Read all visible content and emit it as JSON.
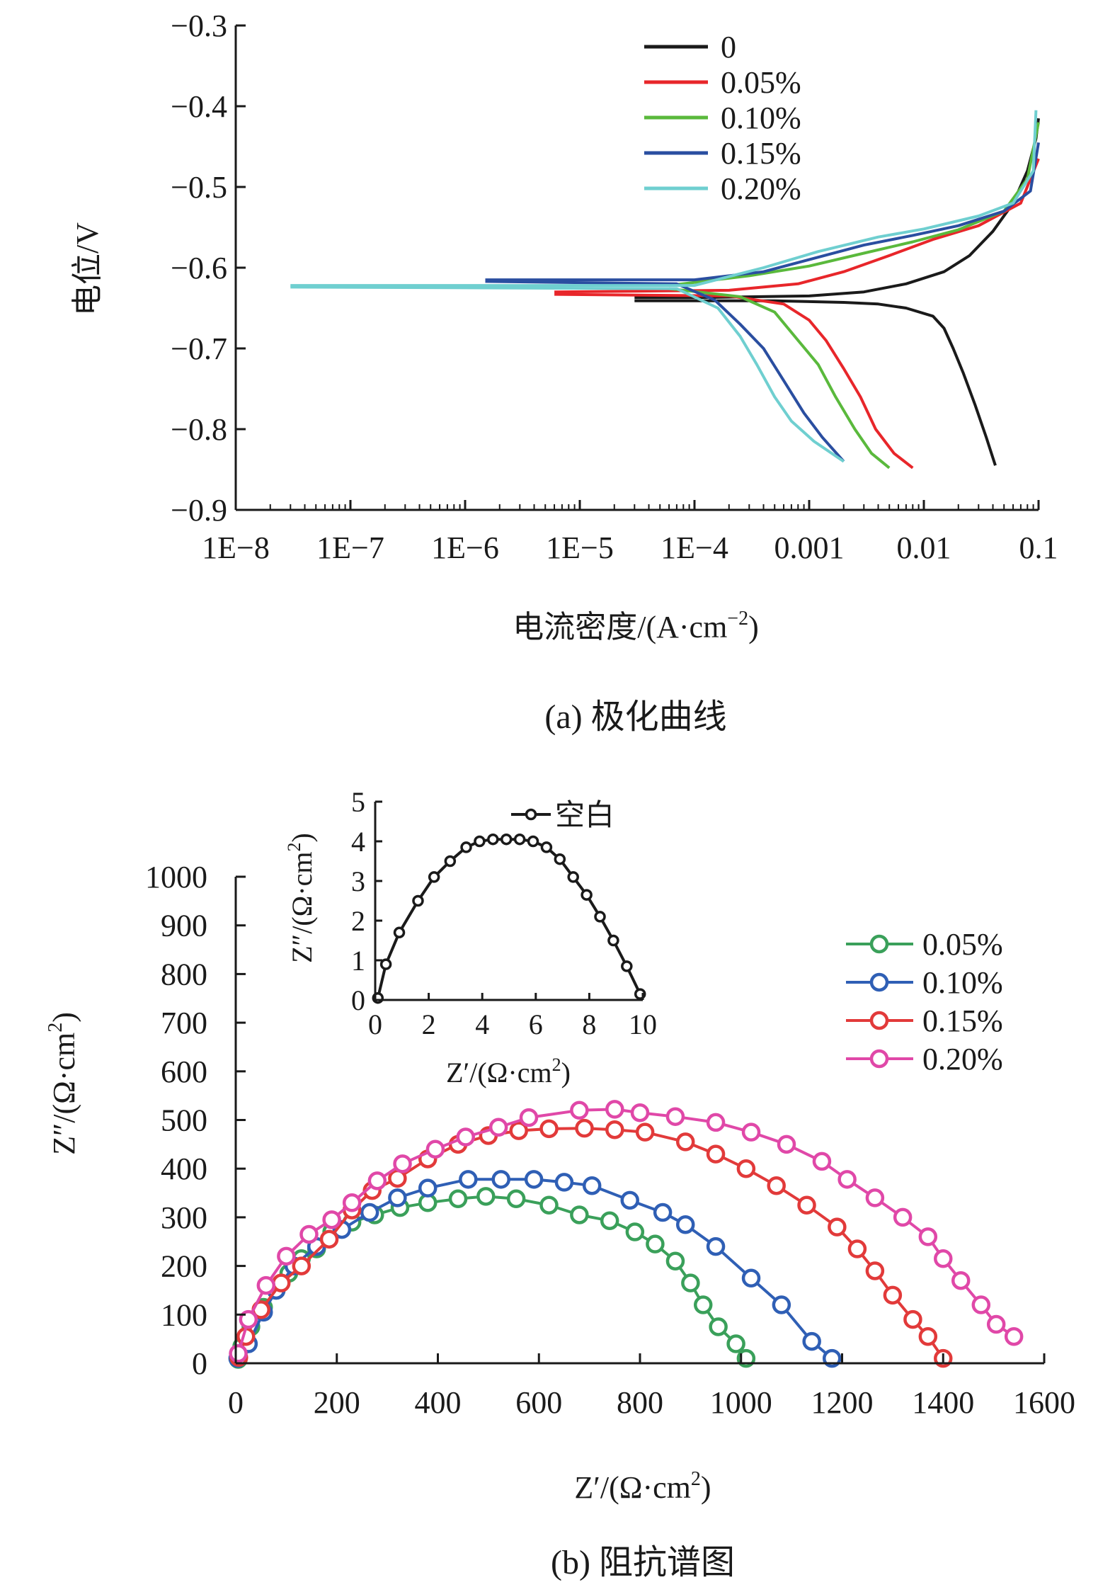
{
  "chart_data": [
    {
      "type": "line",
      "caption": "(a) 极化曲线",
      "xlabel": "电流密度/(A·cm",
      "xlabel_sup": "−2",
      "xlabel_end": ")",
      "ylabel": "电位/V",
      "xscale": "log",
      "xlim": [
        1e-08,
        0.1
      ],
      "ylim": [
        -0.9,
        -0.3
      ],
      "x_ticks": [
        1e-08,
        1e-07,
        1e-06,
        1e-05,
        0.0001,
        0.001,
        0.01,
        0.1
      ],
      "x_tick_labels": [
        "1E−8",
        "1E−7",
        "1E−6",
        "1E−5",
        "1E−4",
        "0.001",
        "0.01",
        "0.1"
      ],
      "y_ticks": [
        -0.9,
        -0.8,
        -0.7,
        -0.6,
        -0.5,
        -0.4,
        -0.3
      ],
      "y_tick_labels": [
        "−0.9",
        "−0.8",
        "−0.7",
        "−0.6",
        "−0.5",
        "−0.4",
        "−0.3"
      ],
      "grid": false,
      "legend": "top-right",
      "series": [
        {
          "name": "0",
          "color": "#1a1a1a",
          "anodic": [
            [
              3e-05,
              -0.637
            ],
            [
              0.0001,
              -0.637
            ],
            [
              0.001,
              -0.635
            ],
            [
              0.003,
              -0.63
            ],
            [
              0.007,
              -0.62
            ],
            [
              0.015,
              -0.605
            ],
            [
              0.025,
              -0.585
            ],
            [
              0.04,
              -0.555
            ],
            [
              0.06,
              -0.52
            ],
            [
              0.08,
              -0.48
            ],
            [
              0.095,
              -0.44
            ],
            [
              0.1,
              -0.415
            ]
          ],
          "cathodic": [
            [
              3e-05,
              -0.641
            ],
            [
              0.0005,
              -0.641
            ],
            [
              0.002,
              -0.643
            ],
            [
              0.004,
              -0.645
            ],
            [
              0.007,
              -0.65
            ],
            [
              0.012,
              -0.66
            ],
            [
              0.015,
              -0.675
            ],
            [
              0.018,
              -0.7
            ],
            [
              0.022,
              -0.73
            ],
            [
              0.028,
              -0.77
            ],
            [
              0.035,
              -0.81
            ],
            [
              0.042,
              -0.845
            ]
          ]
        },
        {
          "name": "0.05%",
          "color": "#e8262a",
          "anodic": [
            [
              6e-06,
              -0.63
            ],
            [
              0.0002,
              -0.628
            ],
            [
              0.0008,
              -0.62
            ],
            [
              0.002,
              -0.605
            ],
            [
              0.005,
              -0.585
            ],
            [
              0.012,
              -0.565
            ],
            [
              0.03,
              -0.548
            ],
            [
              0.07,
              -0.52
            ],
            [
              0.1,
              -0.465
            ]
          ],
          "cathodic": [
            [
              6e-06,
              -0.633
            ],
            [
              0.0002,
              -0.635
            ],
            [
              0.0006,
              -0.645
            ],
            [
              0.001,
              -0.665
            ],
            [
              0.0014,
              -0.69
            ],
            [
              0.002,
              -0.725
            ],
            [
              0.0028,
              -0.76
            ],
            [
              0.0038,
              -0.8
            ],
            [
              0.0055,
              -0.83
            ],
            [
              0.008,
              -0.848
            ]
          ]
        },
        {
          "name": "0.10%",
          "color": "#5ab93c",
          "anodic": [
            [
              6e-05,
              -0.622
            ],
            [
              0.0003,
              -0.61
            ],
            [
              0.001,
              -0.598
            ],
            [
              0.003,
              -0.582
            ],
            [
              0.008,
              -0.568
            ],
            [
              0.02,
              -0.553
            ],
            [
              0.05,
              -0.53
            ],
            [
              0.08,
              -0.49
            ],
            [
              0.1,
              -0.42
            ]
          ],
          "cathodic": [
            [
              6e-05,
              -0.626
            ],
            [
              0.00025,
              -0.636
            ],
            [
              0.0005,
              -0.655
            ],
            [
              0.0008,
              -0.69
            ],
            [
              0.0012,
              -0.72
            ],
            [
              0.0017,
              -0.76
            ],
            [
              0.0025,
              -0.8
            ],
            [
              0.0035,
              -0.83
            ],
            [
              0.005,
              -0.848
            ]
          ]
        },
        {
          "name": "0.15%",
          "color": "#2a4ea0",
          "anodic": [
            [
              1.5e-06,
              -0.615
            ],
            [
              0.0001,
              -0.615
            ],
            [
              0.0004,
              -0.605
            ],
            [
              0.001,
              -0.59
            ],
            [
              0.003,
              -0.572
            ],
            [
              0.008,
              -0.56
            ],
            [
              0.02,
              -0.548
            ],
            [
              0.05,
              -0.53
            ],
            [
              0.085,
              -0.505
            ],
            [
              0.1,
              -0.445
            ]
          ],
          "cathodic": [
            [
              1.5e-06,
              -0.617
            ],
            [
              7e-05,
              -0.62
            ],
            [
              0.00015,
              -0.64
            ],
            [
              0.00025,
              -0.67
            ],
            [
              0.0004,
              -0.7
            ],
            [
              0.0006,
              -0.74
            ],
            [
              0.0009,
              -0.78
            ],
            [
              0.0013,
              -0.81
            ],
            [
              0.002,
              -0.84
            ]
          ]
        },
        {
          "name": "0.20%",
          "color": "#6fcfd0",
          "anodic": [
            [
              3e-08,
              -0.622
            ],
            [
              0.0001,
              -0.622
            ],
            [
              0.0004,
              -0.6
            ],
            [
              0.0012,
              -0.58
            ],
            [
              0.004,
              -0.562
            ],
            [
              0.01,
              -0.552
            ],
            [
              0.03,
              -0.536
            ],
            [
              0.06,
              -0.52
            ],
            [
              0.09,
              -0.48
            ],
            [
              0.095,
              -0.405
            ]
          ],
          "cathodic": [
            [
              3e-08,
              -0.624
            ],
            [
              7e-05,
              -0.626
            ],
            [
              0.00016,
              -0.65
            ],
            [
              0.00025,
              -0.685
            ],
            [
              0.00035,
              -0.72
            ],
            [
              0.0005,
              -0.76
            ],
            [
              0.0007,
              -0.79
            ],
            [
              0.0011,
              -0.815
            ],
            [
              0.002,
              -0.84
            ]
          ]
        }
      ]
    },
    {
      "type": "scatter",
      "caption": "(b) 阻抗谱图",
      "xlabel": "Z′/(Ω·cm",
      "ylabel": "Z″/(Ω·cm",
      "label_sup": "2",
      "label_end": ")",
      "xlim": [
        0,
        1600
      ],
      "ylim": [
        0,
        1000
      ],
      "x_ticks": [
        0,
        200,
        400,
        600,
        800,
        1000,
        1200,
        1400,
        1600
      ],
      "y_ticks": [
        0,
        100,
        200,
        300,
        400,
        500,
        600,
        700,
        800,
        900,
        1000
      ],
      "grid": false,
      "legend": "right",
      "series": [
        {
          "name": "0.05%",
          "color": "#3aa05a",
          "points": [
            [
              5,
              8
            ],
            [
              12,
              35
            ],
            [
              30,
              75
            ],
            [
              55,
              115
            ],
            [
              80,
              150
            ],
            [
              105,
              185
            ],
            [
              130,
              215
            ],
            [
              160,
              235
            ],
            [
              190,
              270
            ],
            [
              230,
              290
            ],
            [
              275,
              305
            ],
            [
              325,
              320
            ],
            [
              380,
              330
            ],
            [
              440,
              338
            ],
            [
              495,
              343
            ],
            [
              555,
              338
            ],
            [
              620,
              325
            ],
            [
              680,
              305
            ],
            [
              740,
              293
            ],
            [
              790,
              270
            ],
            [
              830,
              245
            ],
            [
              870,
              210
            ],
            [
              900,
              165
            ],
            [
              925,
              120
            ],
            [
              955,
              75
            ],
            [
              990,
              40
            ],
            [
              1010,
              10
            ]
          ]
        },
        {
          "name": "0.10%",
          "color": "#2f5fb5",
          "points": [
            [
              4,
              10
            ],
            [
              25,
              40
            ],
            [
              55,
              105
            ],
            [
              80,
              150
            ],
            [
              115,
              200
            ],
            [
              160,
              240
            ],
            [
              210,
              275
            ],
            [
              265,
              310
            ],
            [
              320,
              340
            ],
            [
              380,
              360
            ],
            [
              460,
              378
            ],
            [
              525,
              378
            ],
            [
              590,
              378
            ],
            [
              650,
              372
            ],
            [
              705,
              365
            ],
            [
              780,
              335
            ],
            [
              845,
              310
            ],
            [
              890,
              285
            ],
            [
              950,
              240
            ],
            [
              1020,
              175
            ],
            [
              1080,
              120
            ],
            [
              1140,
              45
            ],
            [
              1180,
              10
            ]
          ]
        },
        {
          "name": "0.15%",
          "color": "#e23a3a",
          "points": [
            [
              6,
              12
            ],
            [
              20,
              55
            ],
            [
              50,
              110
            ],
            [
              90,
              165
            ],
            [
              130,
              200
            ],
            [
              185,
              255
            ],
            [
              230,
              315
            ],
            [
              270,
              355
            ],
            [
              320,
              380
            ],
            [
              380,
              420
            ],
            [
              440,
              450
            ],
            [
              500,
              468
            ],
            [
              560,
              478
            ],
            [
              620,
              482
            ],
            [
              690,
              483
            ],
            [
              750,
              480
            ],
            [
              810,
              475
            ],
            [
              890,
              455
            ],
            [
              950,
              430
            ],
            [
              1010,
              400
            ],
            [
              1070,
              365
            ],
            [
              1130,
              325
            ],
            [
              1190,
              280
            ],
            [
              1230,
              235
            ],
            [
              1265,
              190
            ],
            [
              1300,
              140
            ],
            [
              1340,
              90
            ],
            [
              1370,
              55
            ],
            [
              1400,
              10
            ]
          ]
        },
        {
          "name": "0.20%",
          "color": "#e048a8",
          "points": [
            [
              5,
              20
            ],
            [
              25,
              90
            ],
            [
              60,
              160
            ],
            [
              100,
              220
            ],
            [
              145,
              265
            ],
            [
              190,
              295
            ],
            [
              230,
              330
            ],
            [
              280,
              375
            ],
            [
              330,
              410
            ],
            [
              395,
              440
            ],
            [
              455,
              465
            ],
            [
              520,
              485
            ],
            [
              580,
              505
            ],
            [
              680,
              520
            ],
            [
              750,
              522
            ],
            [
              800,
              515
            ],
            [
              870,
              507
            ],
            [
              950,
              495
            ],
            [
              1020,
              475
            ],
            [
              1090,
              450
            ],
            [
              1160,
              415
            ],
            [
              1210,
              378
            ],
            [
              1265,
              340
            ],
            [
              1320,
              300
            ],
            [
              1370,
              260
            ],
            [
              1400,
              215
            ],
            [
              1435,
              170
            ],
            [
              1475,
              120
            ],
            [
              1505,
              80
            ],
            [
              1540,
              55
            ]
          ]
        }
      ]
    },
    {
      "type": "scatter",
      "inset": true,
      "xlabel": "Z′/(Ω·cm",
      "ylabel": "Z″/(Ω·cm",
      "label_sup": "2",
      "label_end": ")",
      "xlim": [
        0,
        10
      ],
      "ylim": [
        0,
        5
      ],
      "x_ticks": [
        0,
        2,
        4,
        6,
        8,
        10
      ],
      "y_ticks": [
        0,
        1,
        2,
        3,
        4,
        5
      ],
      "legend": "top",
      "series": [
        {
          "name": "空白",
          "color": "#1a1a1a",
          "points": [
            [
              0.1,
              0.05
            ],
            [
              0.4,
              0.9
            ],
            [
              0.9,
              1.7
            ],
            [
              1.6,
              2.5
            ],
            [
              2.2,
              3.1
            ],
            [
              2.8,
              3.5
            ],
            [
              3.4,
              3.85
            ],
            [
              3.9,
              4.0
            ],
            [
              4.4,
              4.05
            ],
            [
              4.9,
              4.05
            ],
            [
              5.4,
              4.05
            ],
            [
              5.9,
              4.0
            ],
            [
              6.4,
              3.85
            ],
            [
              6.9,
              3.55
            ],
            [
              7.4,
              3.1
            ],
            [
              7.9,
              2.65
            ],
            [
              8.4,
              2.1
            ],
            [
              8.9,
              1.5
            ],
            [
              9.4,
              0.85
            ],
            [
              9.9,
              0.15
            ]
          ]
        }
      ]
    }
  ]
}
